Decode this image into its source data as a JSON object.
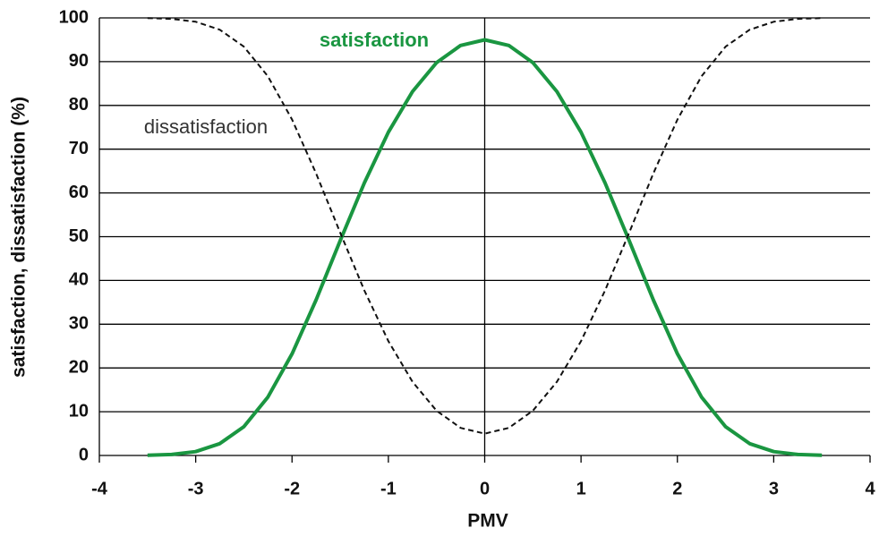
{
  "chart_data": {
    "type": "line",
    "x_label": "PMV",
    "y_label": "satisfaction, dissatisfaction (%)",
    "x": [
      -3.5,
      -3.25,
      -3,
      -2.75,
      -2.5,
      -2.25,
      -2,
      -1.75,
      -1.5,
      -1.25,
      -1,
      -0.75,
      -0.5,
      -0.25,
      0,
      0.25,
      0.5,
      0.75,
      1,
      1.25,
      1.5,
      1.75,
      2,
      2.25,
      2.5,
      2.75,
      3,
      3.25,
      3.5
    ],
    "series": [
      {
        "name": "satisfaction",
        "color": "#1a9641",
        "dashed": false,
        "values": [
          0.04,
          0.23,
          0.88,
          2.69,
          6.57,
          13.35,
          23.24,
          35.59,
          49.1,
          62.28,
          73.88,
          83.15,
          89.78,
          93.7,
          95,
          93.7,
          89.78,
          83.15,
          73.88,
          62.28,
          49.1,
          35.59,
          23.24,
          13.35,
          6.57,
          2.69,
          0.88,
          0.23,
          0.04
        ]
      },
      {
        "name": "dissatisfaction",
        "color": "#111111",
        "dashed": true,
        "values": [
          99.96,
          99.77,
          99.12,
          97.31,
          93.43,
          86.65,
          76.76,
          64.41,
          50.9,
          37.72,
          26.12,
          16.85,
          10.22,
          6.3,
          5,
          6.3,
          10.22,
          16.85,
          26.12,
          37.72,
          50.9,
          64.41,
          76.76,
          86.65,
          93.43,
          97.31,
          99.12,
          99.77,
          99.96
        ]
      }
    ],
    "xlim": [
      -4,
      4
    ],
    "xticks": [
      -4,
      -3,
      -2,
      -1,
      0,
      1,
      2,
      3,
      4
    ],
    "ylim": [
      0,
      100
    ],
    "yticks": [
      0,
      10,
      20,
      30,
      40,
      50,
      60,
      70,
      80,
      90,
      100
    ],
    "grid": true
  }
}
